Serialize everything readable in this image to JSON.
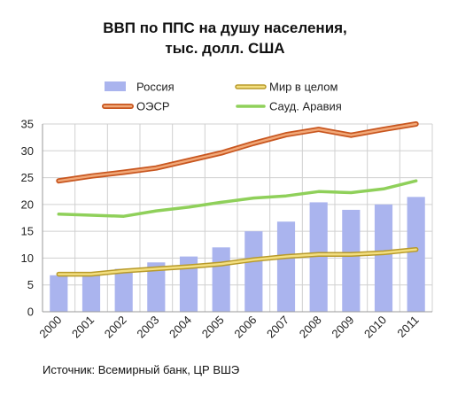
{
  "title_lines": [
    "ВВП по ППС  на душу  населения,",
    "тыс. долл. США"
  ],
  "source": "Источник: Всемирный банк, ЦР ВШЭ",
  "colors": {
    "russia": "#aab4ee",
    "world_fill": "#f3df80",
    "world_edge": "#b89a2a",
    "oecd_fill": "#f1a878",
    "oecd_edge": "#c8561f",
    "saudi": "#8fd05a",
    "grid": "#d0d0d0"
  },
  "chart_data": {
    "type": "bar",
    "categories": [
      "2000",
      "2001",
      "2002",
      "2003",
      "2004",
      "2005",
      "2006",
      "2007",
      "2008",
      "2009",
      "2010",
      "2011"
    ],
    "ylim": [
      0,
      35
    ],
    "yticks": [
      "0",
      "5",
      "10",
      "15",
      "20",
      "25",
      "30",
      "35"
    ],
    "legend_position": "top",
    "series": [
      {
        "name": "Россия",
        "kind": "bar",
        "values": [
          6.8,
          7.3,
          8.0,
          9.2,
          10.3,
          12.0,
          15.0,
          16.8,
          20.4,
          19.0,
          20.0,
          21.4
        ]
      },
      {
        "name": "Мир в целом",
        "kind": "line",
        "values": [
          7.0,
          7.0,
          7.6,
          8.0,
          8.4,
          8.9,
          9.7,
          10.3,
          10.7,
          10.7,
          11.0,
          11.6
        ]
      },
      {
        "name": "ОЭСР",
        "kind": "line",
        "values": [
          24.4,
          25.3,
          26.0,
          26.8,
          28.2,
          29.6,
          31.4,
          33.0,
          34.0,
          32.9,
          34.0,
          35.0
        ]
      },
      {
        "name": "Сауд. Аравия",
        "kind": "line",
        "values": [
          18.2,
          18.0,
          17.8,
          18.8,
          19.5,
          20.4,
          21.2,
          21.6,
          22.4,
          22.2,
          22.9,
          24.4
        ]
      }
    ]
  }
}
